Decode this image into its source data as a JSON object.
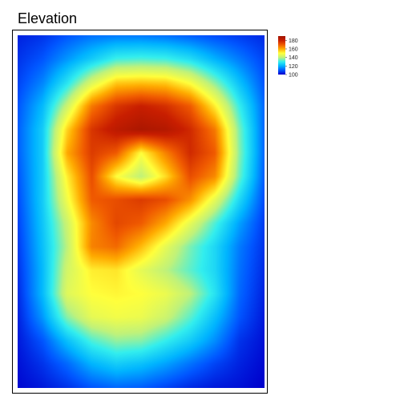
{
  "chart_data": {
    "type": "heatmap",
    "title": "Elevation",
    "legend": {
      "placement": "top-right",
      "min": 100,
      "max": 190,
      "ticks": [
        180,
        160,
        140,
        120,
        100
      ]
    },
    "colormap": [
      "#0000cc",
      "#0055ff",
      "#00b4ff",
      "#33eeee",
      "#c0f27a",
      "#ffff3c",
      "#ffaa00",
      "#f05a00",
      "#c81e00",
      "#a01400"
    ],
    "grid": {
      "cols": 11,
      "rows": 16,
      "values": [
        [
          104,
          106,
          110,
          113,
          114,
          114,
          113,
          111,
          109,
          107,
          105
        ],
        [
          106,
          110,
          117,
          124,
          131,
          132,
          131,
          127,
          120,
          114,
          108
        ],
        [
          108,
          115,
          128,
          144,
          156,
          157,
          156,
          149,
          136,
          122,
          110
        ],
        [
          110,
          121,
          142,
          166,
          176,
          180,
          177,
          170,
          152,
          130,
          112
        ],
        [
          111,
          124,
          155,
          176,
          183,
          187,
          185,
          178,
          166,
          135,
          112
        ],
        [
          111,
          124,
          160,
          175,
          170,
          150,
          165,
          178,
          170,
          136,
          112
        ],
        [
          110,
          124,
          152,
          172,
          150,
          140,
          154,
          172,
          164,
          134,
          111
        ],
        [
          109,
          124,
          148,
          170,
          172,
          175,
          172,
          163,
          146,
          126,
          109
        ],
        [
          108,
          123,
          142,
          164,
          173,
          170,
          160,
          146,
          132,
          118,
          107
        ],
        [
          107,
          122,
          140,
          165,
          168,
          158,
          146,
          135,
          126,
          114,
          106
        ],
        [
          106,
          121,
          143,
          152,
          153,
          146,
          140,
          133,
          126,
          113,
          105
        ],
        [
          105,
          121,
          145,
          150,
          151,
          150,
          147,
          140,
          128,
          112,
          104
        ],
        [
          104,
          117,
          136,
          146,
          148,
          147,
          142,
          133,
          122,
          110,
          103
        ],
        [
          103,
          110,
          122,
          132,
          137,
          136,
          130,
          124,
          116,
          106,
          102
        ],
        [
          102,
          106,
          112,
          120,
          124,
          122,
          118,
          113,
          108,
          104,
          101
        ],
        [
          101,
          103,
          106,
          110,
          112,
          111,
          108,
          105,
          103,
          102,
          100
        ]
      ]
    }
  }
}
